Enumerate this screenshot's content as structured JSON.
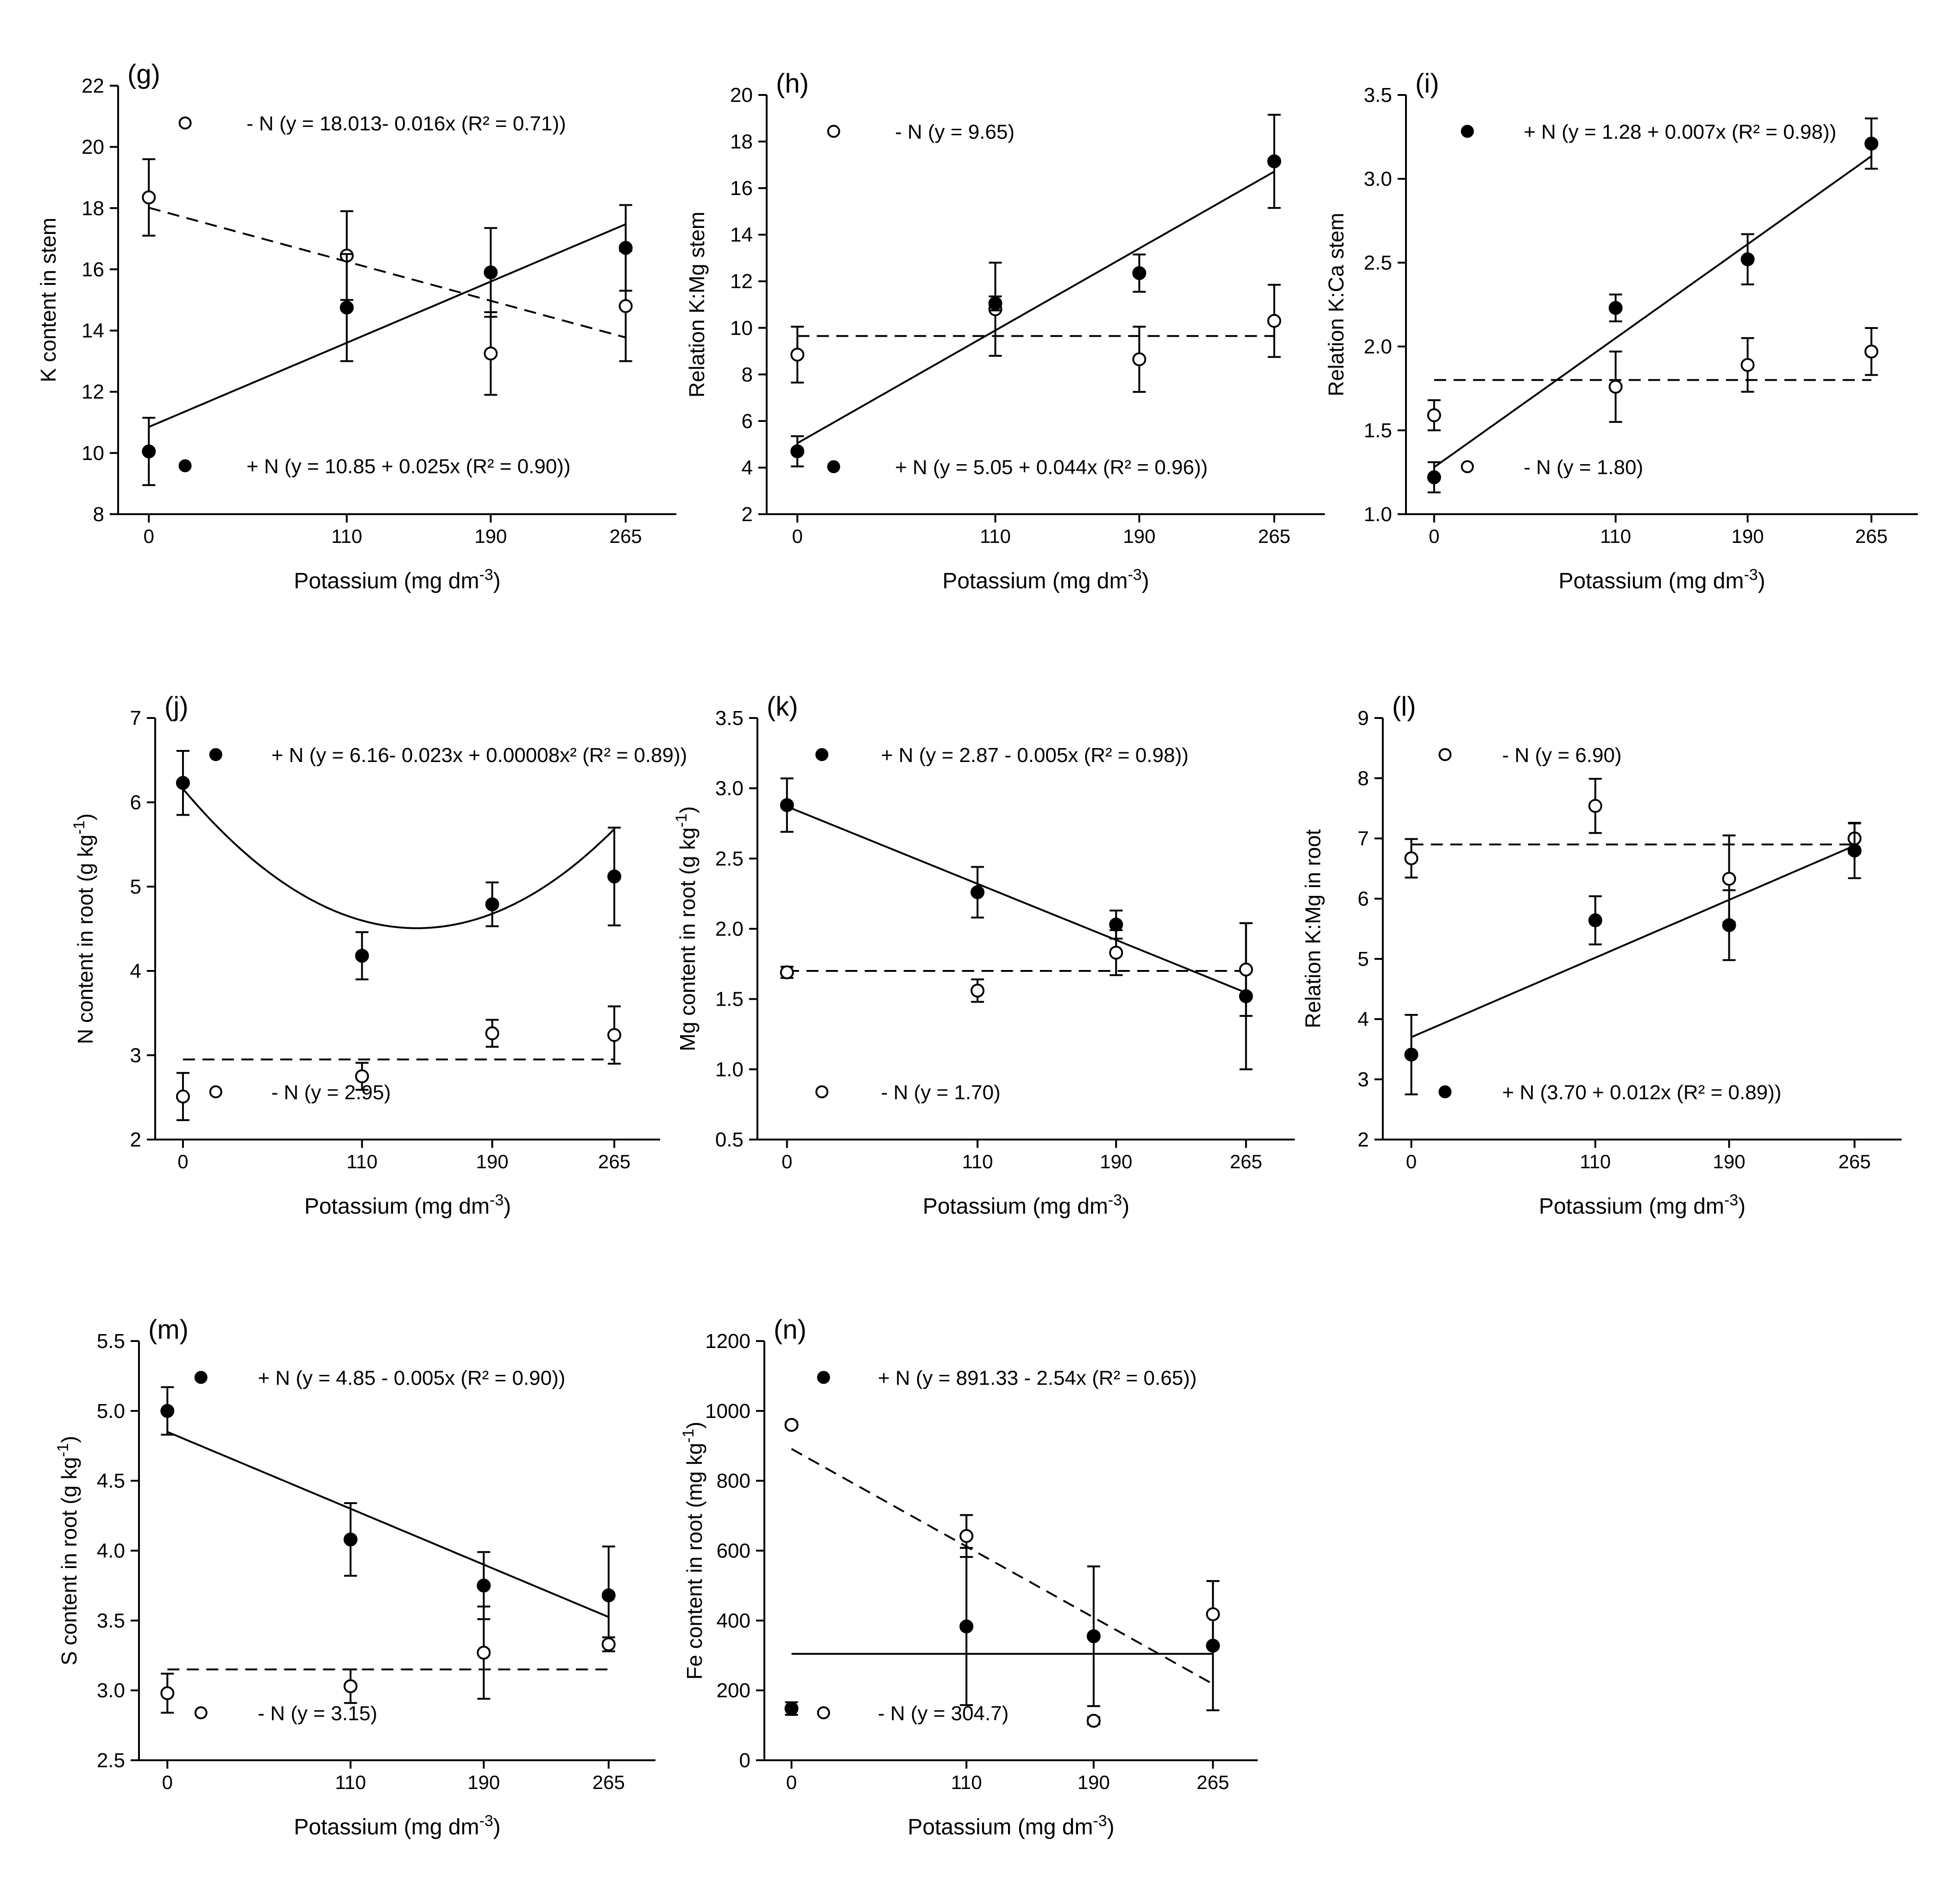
{
  "chart_data": [
    {
      "type": "scatter",
      "panel_label": "(g)",
      "xlabel": "Potassium (mg dm-3)",
      "ylabel": "K content in stem",
      "x": [
        0,
        110,
        190,
        265
      ],
      "xticks": [
        0,
        110,
        190,
        265
      ],
      "ylim": [
        8,
        22
      ],
      "yticks": [
        8,
        10,
        12,
        14,
        16,
        18,
        20,
        22
      ],
      "ytick_decimals": 0,
      "series": [
        {
          "name": "- N",
          "marker": "open",
          "values": [
            18.35,
            16.45,
            13.25,
            14.8
          ],
          "errors": [
            1.25,
            1.45,
            1.35,
            1.8
          ],
          "fit_type": "linear",
          "fit": [
            18.013,
            -0.016
          ],
          "linestyle": "dashed",
          "legend_label": "- N (y = 18.013- 0.016x (R² = 0.71))",
          "legend_pos": "top"
        },
        {
          "name": "+ N",
          "marker": "filled",
          "values": [
            10.05,
            14.75,
            15.9,
            16.7
          ],
          "errors": [
            1.1,
            1.75,
            1.45,
            1.4
          ],
          "fit_type": "linear",
          "fit": [
            10.85,
            0.025
          ],
          "linestyle": "solid",
          "legend_label": "+ N  (y = 10.85 + 0.025x (R² = 0.90))",
          "legend_pos": "bottom"
        }
      ]
    },
    {
      "type": "scatter",
      "panel_label": "(h)",
      "xlabel": "Potassium (mg dm-3)",
      "ylabel": "Relation K:Mg stem",
      "x": [
        0,
        110,
        190,
        265
      ],
      "xticks": [
        0,
        110,
        190,
        265
      ],
      "ylim": [
        2,
        20
      ],
      "yticks": [
        2,
        4,
        6,
        8,
        10,
        12,
        14,
        16,
        18,
        20
      ],
      "ytick_decimals": 0,
      "series": [
        {
          "name": "- N",
          "marker": "open",
          "values": [
            8.85,
            10.8,
            8.65,
            10.3
          ],
          "errors": [
            1.2,
            2.0,
            1.4,
            1.55
          ],
          "fit_type": "constant",
          "fit": [
            9.65
          ],
          "linestyle": "dashed",
          "legend_label": "- N (y = 9.65)",
          "legend_pos": "top"
        },
        {
          "name": "+ N",
          "marker": "filled",
          "values": [
            4.7,
            11.05,
            12.35,
            17.15
          ],
          "errors": [
            0.65,
            0.3,
            0.8,
            2.0
          ],
          "fit_type": "linear",
          "fit": [
            5.05,
            0.044
          ],
          "linestyle": "solid",
          "legend_label": "+ N  (y = 5.05 + 0.044x (R² = 0.96))",
          "legend_pos": "bottom"
        }
      ]
    },
    {
      "type": "scatter",
      "panel_label": "(i)",
      "xlabel": "Potassium (mg dm-3)",
      "ylabel": "Relation K:Ca stem",
      "x": [
        0,
        110,
        190,
        265
      ],
      "xticks": [
        0,
        110,
        190,
        265
      ],
      "ylim": [
        1.0,
        3.5
      ],
      "yticks": [
        1.0,
        1.5,
        2.0,
        2.5,
        3.0,
        3.5
      ],
      "ytick_decimals": 1,
      "series": [
        {
          "name": "+ N",
          "marker": "filled",
          "values": [
            1.22,
            2.23,
            2.52,
            3.21
          ],
          "errors": [
            0.09,
            0.08,
            0.15,
            0.15
          ],
          "fit_type": "linear",
          "fit": [
            1.28,
            0.007
          ],
          "linestyle": "solid",
          "legend_label": "+ N (y = 1.28 + 0.007x (R² = 0.98))",
          "legend_pos": "top"
        },
        {
          "name": "- N",
          "marker": "open",
          "values": [
            1.59,
            1.76,
            1.89,
            1.97
          ],
          "errors": [
            0.09,
            0.21,
            0.16,
            0.14
          ],
          "fit_type": "constant",
          "fit": [
            1.8
          ],
          "linestyle": "dashed",
          "legend_label": "- N (y = 1.80)",
          "legend_pos": "bottom"
        }
      ]
    },
    {
      "type": "scatter",
      "panel_label": "(j)",
      "xlabel": "Potassium (mg dm-3)",
      "ylabel": "N content in root (g kg-1)",
      "x": [
        0,
        110,
        190,
        265
      ],
      "xticks": [
        0,
        110,
        190,
        265
      ],
      "ylim": [
        2,
        7
      ],
      "yticks": [
        2,
        3,
        4,
        5,
        6,
        7
      ],
      "ytick_decimals": 0,
      "series": [
        {
          "name": "+ N",
          "marker": "filled",
          "values": [
            6.23,
            4.18,
            4.79,
            5.12
          ],
          "errors": [
            0.38,
            0.28,
            0.26,
            0.58
          ],
          "fit_type": "quadratic",
          "fit": [
            6.16,
            -0.023,
            8e-05
          ],
          "linestyle": "solid",
          "legend_label": "+ N (y = 6.16- 0.023x + 0.00008x² (R² = 0.89))",
          "legend_pos": "top"
        },
        {
          "name": "- N",
          "marker": "open",
          "values": [
            2.51,
            2.75,
            3.26,
            3.24
          ],
          "errors": [
            0.28,
            0.16,
            0.16,
            0.34
          ],
          "fit_type": "constant",
          "fit": [
            2.95
          ],
          "linestyle": "dashed",
          "legend_label": "- N (y = 2.95)",
          "legend_pos": "bottom"
        }
      ]
    },
    {
      "type": "scatter",
      "panel_label": "(k)",
      "xlabel": "Potassium (mg dm-3)",
      "ylabel": "Mg content in root (g kg-1)",
      "x": [
        0,
        110,
        190,
        265
      ],
      "xticks": [
        0,
        110,
        190,
        265
      ],
      "ylim": [
        0.5,
        3.5
      ],
      "yticks": [
        0.5,
        1.0,
        1.5,
        2.0,
        2.5,
        3.0,
        3.5
      ],
      "ytick_decimals": 1,
      "series": [
        {
          "name": "+ N",
          "marker": "filled",
          "values": [
            2.88,
            2.26,
            2.03,
            1.52
          ],
          "errors": [
            0.19,
            0.18,
            0.1,
            0.52
          ],
          "fit_type": "linear",
          "fit": [
            2.87,
            -0.005
          ],
          "linestyle": "solid",
          "legend_label": "+ N (y = 2.87 - 0.005x (R² = 0.98))",
          "legend_pos": "top"
        },
        {
          "name": "- N",
          "marker": "open",
          "values": [
            1.69,
            1.56,
            1.83,
            1.71
          ],
          "errors": [
            0.04,
            0.08,
            0.16,
            0.33
          ],
          "fit_type": "constant",
          "fit": [
            1.7
          ],
          "linestyle": "dashed",
          "legend_label": "- N (y = 1.70)",
          "legend_pos": "bottom"
        }
      ]
    },
    {
      "type": "scatter",
      "panel_label": "(l)",
      "xlabel": "Potassium (mg dm-3)",
      "ylabel": "Relation K:Mg in root",
      "x": [
        0,
        110,
        190,
        265
      ],
      "xticks": [
        0,
        110,
        190,
        265
      ],
      "ylim": [
        2,
        9
      ],
      "yticks": [
        2,
        3,
        4,
        5,
        6,
        7,
        8,
        9
      ],
      "ytick_decimals": 0,
      "series": [
        {
          "name": "- N",
          "marker": "open",
          "values": [
            6.67,
            7.54,
            6.33,
            7.0
          ],
          "errors": [
            0.32,
            0.45,
            0.72,
            0.25
          ],
          "fit_type": "constant",
          "fit": [
            6.9
          ],
          "linestyle": "dashed",
          "legend_label": "- N (y = 6.90)",
          "legend_pos": "top"
        },
        {
          "name": "+ N",
          "marker": "filled",
          "values": [
            3.41,
            5.64,
            5.56,
            6.8
          ],
          "errors": [
            0.66,
            0.4,
            0.58,
            0.46
          ],
          "fit_type": "linear",
          "fit": [
            3.7,
            0.012
          ],
          "linestyle": "solid",
          "legend_label": "+ N (3.70 + 0.012x (R² = 0.89))",
          "legend_pos": "bottom"
        }
      ]
    },
    {
      "type": "scatter",
      "panel_label": "(m)",
      "xlabel": "Potassium (mg dm-3)",
      "ylabel": "S content in root (g kg-1)",
      "x": [
        0,
        110,
        190,
        265
      ],
      "xticks": [
        0,
        110,
        190,
        265
      ],
      "ylim": [
        2.5,
        5.5
      ],
      "yticks": [
        2.5,
        3.0,
        3.5,
        4.0,
        4.5,
        5.0,
        5.5
      ],
      "ytick_decimals": 1,
      "series": [
        {
          "name": "+ N",
          "marker": "filled",
          "values": [
            5.0,
            4.08,
            3.75,
            3.68
          ],
          "errors": [
            0.17,
            0.26,
            0.24,
            0.35
          ],
          "fit_type": "linear",
          "fit": [
            4.85,
            -0.005
          ],
          "linestyle": "solid",
          "legend_label": "+ N (y = 4.85 - 0.005x (R² = 0.90))",
          "legend_pos": "top"
        },
        {
          "name": "- N",
          "marker": "open",
          "values": [
            2.98,
            3.03,
            3.27,
            3.33
          ],
          "errors": [
            0.14,
            0.12,
            0.33,
            0.05
          ],
          "fit_type": "constant",
          "fit": [
            3.15
          ],
          "linestyle": "dashed",
          "legend_label": "- N (y = 3.15)",
          "legend_pos": "bottom"
        }
      ]
    },
    {
      "type": "scatter",
      "panel_label": "(n)",
      "xlabel": "Potassium (mg dm-3)",
      "ylabel": "Fe content in root (mg kg-1)",
      "x": [
        0,
        110,
        190,
        265
      ],
      "xticks": [
        0,
        110,
        190,
        265
      ],
      "ylim": [
        0,
        1200
      ],
      "yticks": [
        0,
        200,
        400,
        600,
        800,
        1000,
        1200
      ],
      "ytick_decimals": 0,
      "series": [
        {
          "name": "+ N",
          "marker": "filled",
          "values": [
            148,
            383,
            355,
            328
          ],
          "errors": [
            18,
            225,
            200,
            185
          ],
          "fit_type": "linear",
          "fit": [
            891.33,
            -2.54
          ],
          "linestyle": "dashed",
          "legend_label": "+ N (y = 891.33 - 2.54x (R² = 0.65))",
          "legend_pos": "top"
        },
        {
          "name": "- N",
          "marker": "open",
          "values": [
            960,
            642,
            113,
            418
          ],
          "errors": [
            8,
            60,
            10,
            95
          ],
          "fit_type": "constant",
          "fit": [
            304.7
          ],
          "linestyle": "solid",
          "legend_label": "- N (y = 304.7)",
          "legend_pos": "bottom"
        }
      ]
    }
  ]
}
